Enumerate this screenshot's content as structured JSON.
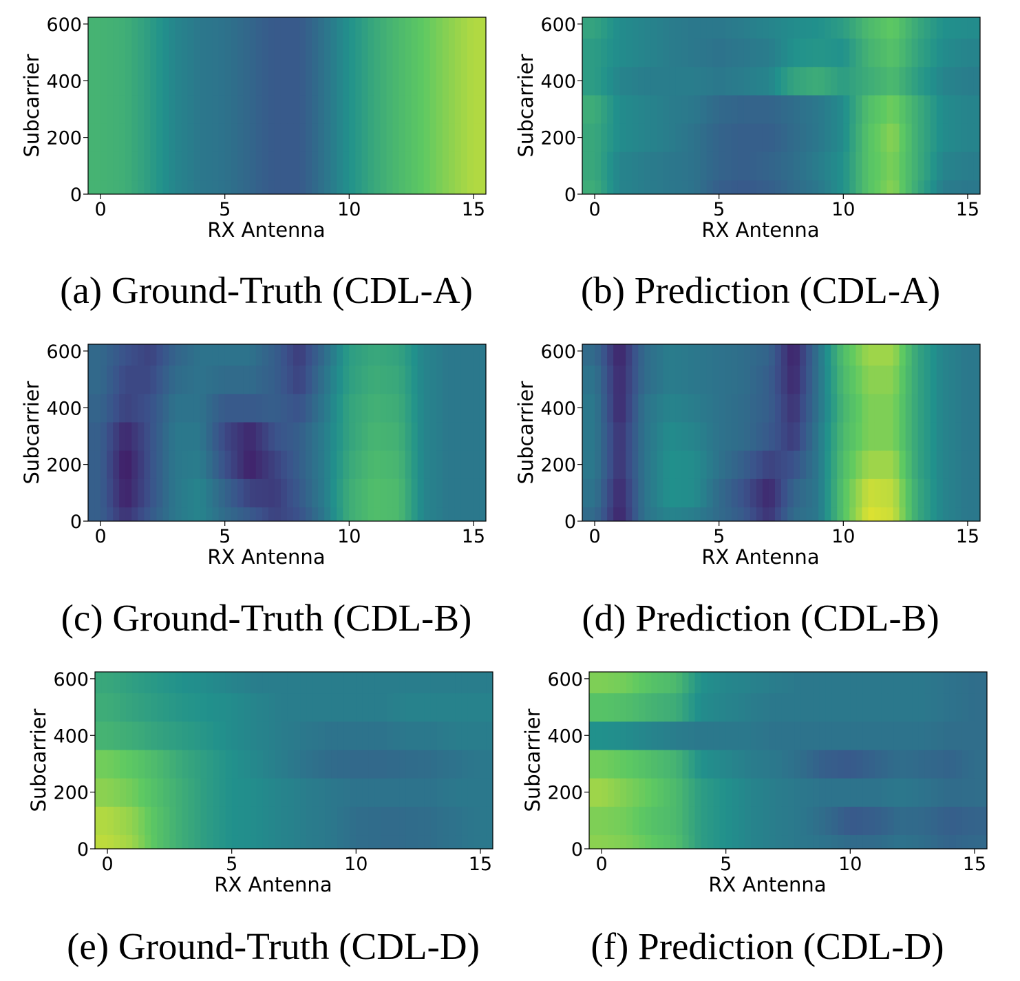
{
  "colormap": [
    "#440154",
    "#3b528b",
    "#21918c",
    "#5ec962",
    "#fde725"
  ],
  "chart_data": [
    {
      "type": "heatmap",
      "caption": "(a) Ground-Truth (CDL-A)",
      "xlabel": "RX Antenna",
      "ylabel": "Subcarrier",
      "xticks": [
        "0",
        "5",
        "10",
        "15"
      ],
      "yticks": [
        "0",
        "200",
        "400",
        "600"
      ],
      "xlim": [
        -0.5,
        15.5
      ],
      "ylim": [
        0,
        624
      ],
      "x": [
        0,
        1,
        2,
        3,
        4,
        5,
        6,
        7,
        8,
        9,
        10,
        11,
        12,
        13,
        14,
        15
      ],
      "y": [
        0,
        100,
        200,
        300,
        400,
        500,
        600
      ],
      "z": [
        [
          0.65,
          0.63,
          0.55,
          0.45,
          0.4,
          0.38,
          0.33,
          0.28,
          0.28,
          0.38,
          0.5,
          0.6,
          0.68,
          0.75,
          0.82,
          0.88
        ],
        [
          0.65,
          0.63,
          0.55,
          0.45,
          0.4,
          0.38,
          0.33,
          0.28,
          0.28,
          0.38,
          0.5,
          0.6,
          0.68,
          0.75,
          0.82,
          0.88
        ],
        [
          0.65,
          0.63,
          0.55,
          0.45,
          0.4,
          0.38,
          0.33,
          0.28,
          0.28,
          0.38,
          0.5,
          0.6,
          0.68,
          0.75,
          0.82,
          0.88
        ],
        [
          0.65,
          0.63,
          0.55,
          0.45,
          0.4,
          0.38,
          0.33,
          0.28,
          0.28,
          0.38,
          0.5,
          0.6,
          0.68,
          0.75,
          0.82,
          0.88
        ],
        [
          0.65,
          0.63,
          0.55,
          0.45,
          0.4,
          0.38,
          0.33,
          0.28,
          0.28,
          0.38,
          0.5,
          0.6,
          0.68,
          0.75,
          0.82,
          0.88
        ],
        [
          0.65,
          0.63,
          0.55,
          0.45,
          0.4,
          0.38,
          0.33,
          0.28,
          0.28,
          0.38,
          0.5,
          0.6,
          0.68,
          0.75,
          0.82,
          0.88
        ],
        [
          0.65,
          0.63,
          0.55,
          0.45,
          0.4,
          0.38,
          0.33,
          0.28,
          0.28,
          0.38,
          0.5,
          0.6,
          0.68,
          0.75,
          0.82,
          0.88
        ]
      ]
    },
    {
      "type": "heatmap",
      "caption": "(b) Prediction (CDL-A)",
      "xlabel": "RX Antenna",
      "ylabel": "Subcarrier",
      "xticks": [
        "0",
        "5",
        "10",
        "15"
      ],
      "yticks": [
        "0",
        "200",
        "400",
        "600"
      ],
      "xlim": [
        -0.5,
        15.5
      ],
      "ylim": [
        0,
        624
      ],
      "x": [
        0,
        1,
        2,
        3,
        4,
        5,
        6,
        7,
        8,
        9,
        10,
        11,
        12,
        13,
        14,
        15
      ],
      "y": [
        0,
        100,
        200,
        300,
        400,
        500,
        600
      ],
      "z": [
        [
          0.62,
          0.45,
          0.42,
          0.4,
          0.38,
          0.3,
          0.28,
          0.3,
          0.35,
          0.4,
          0.5,
          0.72,
          0.82,
          0.6,
          0.42,
          0.4
        ],
        [
          0.6,
          0.45,
          0.42,
          0.4,
          0.38,
          0.32,
          0.3,
          0.32,
          0.36,
          0.42,
          0.5,
          0.72,
          0.8,
          0.62,
          0.45,
          0.42
        ],
        [
          0.6,
          0.48,
          0.45,
          0.42,
          0.38,
          0.32,
          0.3,
          0.3,
          0.35,
          0.4,
          0.48,
          0.72,
          0.82,
          0.62,
          0.48,
          0.45
        ],
        [
          0.62,
          0.48,
          0.45,
          0.42,
          0.4,
          0.34,
          0.32,
          0.32,
          0.36,
          0.4,
          0.48,
          0.7,
          0.78,
          0.62,
          0.48,
          0.45
        ],
        [
          0.55,
          0.45,
          0.42,
          0.42,
          0.42,
          0.4,
          0.42,
          0.45,
          0.58,
          0.62,
          0.55,
          0.62,
          0.68,
          0.55,
          0.45,
          0.42
        ],
        [
          0.55,
          0.48,
          0.45,
          0.42,
          0.4,
          0.38,
          0.4,
          0.42,
          0.5,
          0.52,
          0.5,
          0.65,
          0.72,
          0.58,
          0.48,
          0.45
        ],
        [
          0.58,
          0.48,
          0.45,
          0.42,
          0.4,
          0.4,
          0.42,
          0.45,
          0.48,
          0.5,
          0.55,
          0.68,
          0.75,
          0.6,
          0.5,
          0.48
        ]
      ]
    },
    {
      "type": "heatmap",
      "caption": "(c) Ground-Truth (CDL-B)",
      "xlabel": "RX Antenna",
      "ylabel": "Subcarrier",
      "xticks": [
        "0",
        "5",
        "10",
        "15"
      ],
      "yticks": [
        "0",
        "200",
        "400",
        "600"
      ],
      "xlim": [
        -0.5,
        15.5
      ],
      "ylim": [
        0,
        624
      ],
      "x": [
        0,
        1,
        2,
        3,
        4,
        5,
        6,
        7,
        8,
        9,
        10,
        11,
        12,
        13,
        14,
        15
      ],
      "y": [
        0,
        100,
        200,
        300,
        400,
        500,
        600
      ],
      "z": [
        [
          0.3,
          0.15,
          0.28,
          0.4,
          0.45,
          0.35,
          0.28,
          0.2,
          0.25,
          0.4,
          0.62,
          0.7,
          0.68,
          0.45,
          0.4,
          0.4
        ],
        [
          0.3,
          0.1,
          0.25,
          0.4,
          0.45,
          0.32,
          0.2,
          0.18,
          0.28,
          0.42,
          0.62,
          0.7,
          0.68,
          0.45,
          0.4,
          0.4
        ],
        [
          0.3,
          0.08,
          0.25,
          0.4,
          0.42,
          0.25,
          0.1,
          0.2,
          0.3,
          0.42,
          0.6,
          0.68,
          0.66,
          0.45,
          0.4,
          0.4
        ],
        [
          0.3,
          0.12,
          0.25,
          0.4,
          0.4,
          0.22,
          0.12,
          0.25,
          0.3,
          0.42,
          0.58,
          0.66,
          0.64,
          0.45,
          0.4,
          0.4
        ],
        [
          0.32,
          0.2,
          0.25,
          0.38,
          0.38,
          0.28,
          0.28,
          0.3,
          0.25,
          0.4,
          0.58,
          0.64,
          0.62,
          0.45,
          0.4,
          0.4
        ],
        [
          0.34,
          0.22,
          0.22,
          0.35,
          0.38,
          0.35,
          0.35,
          0.3,
          0.2,
          0.38,
          0.56,
          0.62,
          0.6,
          0.45,
          0.4,
          0.4
        ],
        [
          0.34,
          0.25,
          0.2,
          0.32,
          0.38,
          0.38,
          0.38,
          0.3,
          0.18,
          0.35,
          0.55,
          0.6,
          0.58,
          0.45,
          0.4,
          0.4
        ]
      ]
    },
    {
      "type": "heatmap",
      "caption": "(d) Prediction (CDL-B)",
      "xlabel": "RX Antenna",
      "ylabel": "Subcarrier",
      "xticks": [
        "0",
        "5",
        "10",
        "15"
      ],
      "yticks": [
        "0",
        "200",
        "400",
        "600"
      ],
      "xlim": [
        -0.5,
        15.5
      ],
      "ylim": [
        0,
        624
      ],
      "x": [
        0,
        1,
        2,
        3,
        4,
        5,
        6,
        7,
        8,
        9,
        10,
        11,
        12,
        13,
        14,
        15
      ],
      "y": [
        0,
        100,
        200,
        300,
        400,
        500,
        600
      ],
      "z": [
        [
          0.35,
          0.1,
          0.38,
          0.45,
          0.42,
          0.35,
          0.28,
          0.15,
          0.35,
          0.4,
          0.72,
          0.95,
          0.92,
          0.6,
          0.45,
          0.4
        ],
        [
          0.38,
          0.12,
          0.38,
          0.5,
          0.48,
          0.35,
          0.25,
          0.12,
          0.32,
          0.4,
          0.72,
          0.92,
          0.9,
          0.6,
          0.45,
          0.4
        ],
        [
          0.4,
          0.15,
          0.38,
          0.5,
          0.48,
          0.38,
          0.3,
          0.2,
          0.25,
          0.4,
          0.7,
          0.85,
          0.85,
          0.58,
          0.45,
          0.4
        ],
        [
          0.4,
          0.15,
          0.38,
          0.48,
          0.45,
          0.38,
          0.35,
          0.28,
          0.18,
          0.4,
          0.68,
          0.8,
          0.8,
          0.58,
          0.45,
          0.4
        ],
        [
          0.4,
          0.12,
          0.38,
          0.45,
          0.42,
          0.38,
          0.35,
          0.3,
          0.15,
          0.38,
          0.66,
          0.8,
          0.8,
          0.58,
          0.45,
          0.4
        ],
        [
          0.38,
          0.12,
          0.35,
          0.42,
          0.4,
          0.38,
          0.36,
          0.3,
          0.12,
          0.38,
          0.68,
          0.82,
          0.82,
          0.58,
          0.45,
          0.4
        ],
        [
          0.35,
          0.1,
          0.35,
          0.42,
          0.4,
          0.38,
          0.36,
          0.32,
          0.1,
          0.38,
          0.7,
          0.85,
          0.85,
          0.58,
          0.45,
          0.4
        ]
      ]
    },
    {
      "type": "heatmap",
      "caption": "(e) Ground-Truth (CDL-D)",
      "xlabel": "RX Antenna",
      "ylabel": "Subcarrier",
      "xticks": [
        "0",
        "5",
        "10",
        "15"
      ],
      "yticks": [
        "0",
        "200",
        "400",
        "600"
      ],
      "xlim": [
        -0.5,
        15.5
      ],
      "ylim": [
        0,
        624
      ],
      "x": [
        0,
        1,
        2,
        3,
        4,
        5,
        6,
        7,
        8,
        9,
        10,
        11,
        12,
        13,
        14,
        15
      ],
      "y": [
        0,
        100,
        200,
        300,
        400,
        500,
        600
      ],
      "z": [
        [
          0.9,
          0.85,
          0.72,
          0.62,
          0.55,
          0.5,
          0.48,
          0.45,
          0.42,
          0.4,
          0.36,
          0.35,
          0.35,
          0.36,
          0.38,
          0.4
        ],
        [
          0.88,
          0.83,
          0.72,
          0.62,
          0.55,
          0.5,
          0.48,
          0.45,
          0.42,
          0.4,
          0.36,
          0.35,
          0.35,
          0.36,
          0.38,
          0.4
        ],
        [
          0.82,
          0.78,
          0.7,
          0.62,
          0.55,
          0.5,
          0.48,
          0.45,
          0.42,
          0.4,
          0.38,
          0.38,
          0.38,
          0.38,
          0.4,
          0.4
        ],
        [
          0.78,
          0.74,
          0.68,
          0.6,
          0.55,
          0.5,
          0.46,
          0.42,
          0.38,
          0.35,
          0.34,
          0.34,
          0.35,
          0.36,
          0.38,
          0.4
        ],
        [
          0.65,
          0.62,
          0.58,
          0.55,
          0.52,
          0.48,
          0.45,
          0.42,
          0.4,
          0.38,
          0.38,
          0.38,
          0.4,
          0.4,
          0.42,
          0.42
        ],
        [
          0.62,
          0.58,
          0.55,
          0.52,
          0.5,
          0.48,
          0.45,
          0.42,
          0.42,
          0.42,
          0.42,
          0.42,
          0.44,
          0.44,
          0.44,
          0.44
        ],
        [
          0.6,
          0.56,
          0.53,
          0.5,
          0.48,
          0.45,
          0.42,
          0.42,
          0.42,
          0.42,
          0.42,
          0.42,
          0.42,
          0.42,
          0.42,
          0.42
        ]
      ]
    },
    {
      "type": "heatmap",
      "caption": "(f) Prediction (CDL-D)",
      "xlabel": "RX Antenna",
      "ylabel": "Subcarrier",
      "xticks": [
        "0",
        "5",
        "10",
        "15"
      ],
      "yticks": [
        "0",
        "200",
        "400",
        "600"
      ],
      "xlim": [
        -0.5,
        15.5
      ],
      "ylim": [
        0,
        624
      ],
      "x": [
        0,
        1,
        2,
        3,
        4,
        5,
        6,
        7,
        8,
        9,
        10,
        11,
        12,
        13,
        14,
        15
      ],
      "y": [
        0,
        100,
        200,
        300,
        400,
        500,
        600
      ],
      "z": [
        [
          0.82,
          0.8,
          0.75,
          0.7,
          0.55,
          0.5,
          0.45,
          0.42,
          0.4,
          0.38,
          0.35,
          0.35,
          0.38,
          0.36,
          0.32,
          0.34
        ],
        [
          0.8,
          0.78,
          0.72,
          0.68,
          0.55,
          0.5,
          0.45,
          0.42,
          0.4,
          0.35,
          0.28,
          0.3,
          0.35,
          0.34,
          0.3,
          0.32
        ],
        [
          0.85,
          0.8,
          0.75,
          0.68,
          0.55,
          0.5,
          0.45,
          0.42,
          0.4,
          0.38,
          0.38,
          0.38,
          0.4,
          0.38,
          0.35,
          0.36
        ],
        [
          0.78,
          0.75,
          0.7,
          0.65,
          0.5,
          0.46,
          0.42,
          0.4,
          0.36,
          0.3,
          0.28,
          0.32,
          0.36,
          0.34,
          0.32,
          0.36
        ],
        [
          0.5,
          0.48,
          0.45,
          0.42,
          0.4,
          0.4,
          0.4,
          0.38,
          0.38,
          0.38,
          0.38,
          0.38,
          0.38,
          0.38,
          0.36,
          0.36
        ],
        [
          0.72,
          0.7,
          0.65,
          0.62,
          0.48,
          0.45,
          0.42,
          0.4,
          0.4,
          0.4,
          0.4,
          0.4,
          0.4,
          0.4,
          0.38,
          0.36
        ],
        [
          0.8,
          0.78,
          0.72,
          0.68,
          0.5,
          0.46,
          0.44,
          0.42,
          0.4,
          0.4,
          0.4,
          0.4,
          0.4,
          0.4,
          0.38,
          0.36
        ]
      ]
    }
  ]
}
